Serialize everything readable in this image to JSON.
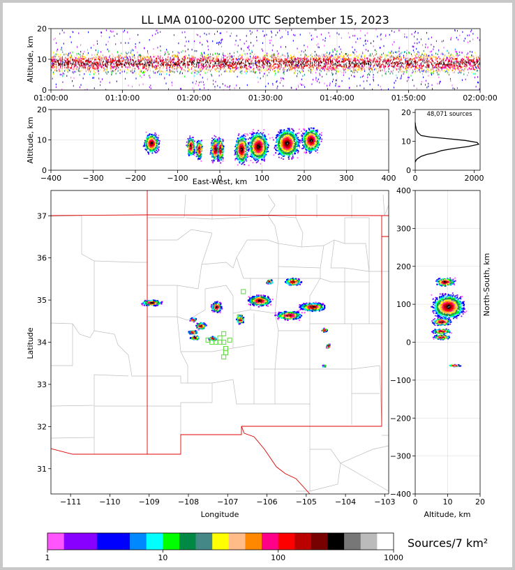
{
  "chart_data": [
    {
      "id": "time_height",
      "type": "scatter",
      "title": "LL LMA 0100-0200 UTC September 15, 2023",
      "ylabel": "Altitude, km",
      "xlabel": "",
      "ylim": [
        0,
        20
      ],
      "yticks": [
        "0",
        "10",
        "20"
      ],
      "xticks": [
        "01:00:00",
        "01:10:00",
        "01:20:00",
        "01:30:00",
        "01:40:00",
        "01:50:00",
        "02:00:00"
      ],
      "xlim_minutes": [
        0,
        60
      ],
      "core_altitude_km": [
        6,
        12
      ],
      "grid": true
    },
    {
      "id": "ew_height",
      "type": "scatter",
      "xlabel": "East-West, km",
      "ylabel": "Altitude, km",
      "xlim": [
        -400,
        400
      ],
      "ylim": [
        0,
        20
      ],
      "xticks": [
        "−400",
        "−300",
        "−200",
        "−100",
        "0",
        "100",
        "200",
        "300",
        "400"
      ],
      "yticks": [
        "0",
        "10",
        "20"
      ],
      "clusters": [
        {
          "x": -163,
          "y": 9,
          "w": 22,
          "h": 4
        },
        {
          "x": -70,
          "y": 8,
          "w": 12,
          "h": 4
        },
        {
          "x": -50,
          "y": 7,
          "w": 10,
          "h": 4
        },
        {
          "x": -12,
          "y": 7,
          "w": 14,
          "h": 5
        },
        {
          "x": 0,
          "y": 7,
          "w": 10,
          "h": 5
        },
        {
          "x": 50,
          "y": 7,
          "w": 20,
          "h": 6
        },
        {
          "x": 90,
          "y": 8,
          "w": 30,
          "h": 6
        },
        {
          "x": 158,
          "y": 9,
          "w": 36,
          "h": 6
        },
        {
          "x": 215,
          "y": 10,
          "w": 28,
          "h": 5
        }
      ],
      "grid": true
    },
    {
      "id": "altitude_histogram",
      "type": "line",
      "annotation": "48,071 sources",
      "xlim": [
        0,
        2200
      ],
      "ylim": [
        0,
        21
      ],
      "xticks": [
        "0",
        "2000"
      ],
      "yticks": [
        "0",
        "10",
        "20"
      ],
      "x": [
        0,
        30,
        80,
        200,
        400,
        650,
        900,
        1300,
        1800,
        2150,
        2100,
        1700,
        1000,
        500,
        200,
        90,
        40,
        10,
        0
      ],
      "y": [
        2.8,
        3.5,
        4,
        4.8,
        5.5,
        6,
        6.8,
        7.5,
        8.2,
        9,
        9.6,
        10.3,
        11,
        11.5,
        12,
        13,
        14,
        15.5,
        16.5
      ]
    },
    {
      "id": "plan_view",
      "type": "scatter",
      "xlabel": "Longitude",
      "ylabel": "Latitude",
      "xlim": [
        -111.5,
        -102.9
      ],
      "ylim": [
        30.4,
        37.6
      ],
      "xticks": [
        "−111",
        "−110",
        "−109",
        "−108",
        "−107",
        "−106",
        "−105",
        "−104",
        "−103"
      ],
      "yticks": [
        "31",
        "32",
        "33",
        "34",
        "35",
        "36",
        "37"
      ],
      "clusters": [
        {
          "x": -108.95,
          "y": 34.95,
          "w": 0.3,
          "h": 0.08
        },
        {
          "x": -107.9,
          "y": 34.55,
          "w": 0.1,
          "h": 0.05
        },
        {
          "x": -107.7,
          "y": 34.4,
          "w": 0.15,
          "h": 0.1
        },
        {
          "x": -107.9,
          "y": 34.25,
          "w": 0.15,
          "h": 0.05
        },
        {
          "x": -107.85,
          "y": 34.12,
          "w": 0.15,
          "h": 0.05
        },
        {
          "x": -107.4,
          "y": 34.1,
          "w": 0.12,
          "h": 0.06
        },
        {
          "x": -107.3,
          "y": 34.85,
          "w": 0.15,
          "h": 0.15
        },
        {
          "x": -106.7,
          "y": 34.55,
          "w": 0.12,
          "h": 0.12
        },
        {
          "x": -106.2,
          "y": 35.0,
          "w": 0.35,
          "h": 0.15
        },
        {
          "x": -105.95,
          "y": 35.45,
          "w": 0.1,
          "h": 0.06
        },
        {
          "x": -105.35,
          "y": 35.45,
          "w": 0.25,
          "h": 0.1
        },
        {
          "x": -105.45,
          "y": 34.65,
          "w": 0.4,
          "h": 0.12
        },
        {
          "x": -104.85,
          "y": 34.85,
          "w": 0.4,
          "h": 0.12
        },
        {
          "x": -104.55,
          "y": 34.3,
          "w": 0.08,
          "h": 0.05
        },
        {
          "x": -104.45,
          "y": 33.92,
          "w": 0.06,
          "h": 0.06
        },
        {
          "x": -104.55,
          "y": 33.45,
          "w": 0.06,
          "h": 0.03
        }
      ],
      "stations": [
        [
          -107.5,
          34.05
        ],
        [
          -107.4,
          34.0
        ],
        [
          -107.3,
          34.0
        ],
        [
          -107.2,
          34.0
        ],
        [
          -107.1,
          34.0
        ],
        [
          -106.95,
          34.05
        ],
        [
          -107.1,
          34.2
        ],
        [
          -107.05,
          33.85
        ],
        [
          -107.05,
          33.75
        ],
        [
          -107.1,
          33.65
        ],
        [
          -106.7,
          34.6
        ],
        [
          -106.6,
          35.2
        ],
        [
          -107.2,
          34.1
        ]
      ]
    },
    {
      "id": "ns_height",
      "type": "scatter",
      "xlabel": "Altitude, km",
      "ylabel": "North-South, km",
      "xlim": [
        0,
        20
      ],
      "ylim": [
        -400,
        400
      ],
      "xticks": [
        "0",
        "10",
        "20"
      ],
      "yticks": [
        "−400",
        "−300",
        "−200",
        "−100",
        "0",
        "100",
        "200",
        "300",
        "400"
      ],
      "clusters": [
        {
          "x": 9,
          "y": 160,
          "w": 6,
          "h": 14
        },
        {
          "x": 10,
          "y": 95,
          "w": 10,
          "h": 40
        },
        {
          "x": 8,
          "y": 55,
          "w": 6,
          "h": 12
        },
        {
          "x": 8,
          "y": 30,
          "w": 6,
          "h": 8
        },
        {
          "x": 8,
          "y": 15,
          "w": 5,
          "h": 8
        },
        {
          "x": 12,
          "y": -60,
          "w": 4,
          "h": 3
        }
      ]
    },
    {
      "id": "colorbar",
      "type": "heatmap",
      "label": "Sources/7 km²",
      "scale": "log",
      "range": [
        1,
        1000
      ],
      "ticks": [
        "1",
        "10",
        "100",
        "1000"
      ],
      "colors": [
        "#ff55ff",
        "#8800ff",
        "#8800ff",
        "#0000ff",
        "#0000ff",
        "#0088ff",
        "#00ffff",
        "#00ff00",
        "#008844",
        "#448888",
        "#ffff00",
        "#ffbb88",
        "#ff8800",
        "#ff0088",
        "#ff0000",
        "#bb0000",
        "#770000",
        "#000000",
        "#777777",
        "#bbbbbb",
        "#ffffff"
      ]
    }
  ]
}
